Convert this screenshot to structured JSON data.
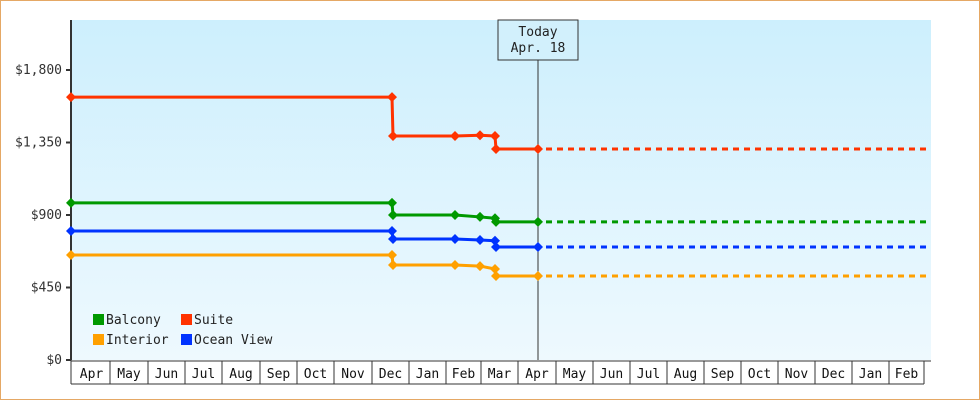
{
  "chart_data": {
    "type": "line",
    "title": "",
    "xlabel": "",
    "ylabel": "",
    "ylim": [
      0,
      2100
    ],
    "yticks": [
      {
        "value": 0,
        "label": "$0"
      },
      {
        "value": 450,
        "label": "$450"
      },
      {
        "value": 900,
        "label": "$900"
      },
      {
        "value": 1350,
        "label": "$1,350"
      },
      {
        "value": 1800,
        "label": "$1,800"
      }
    ],
    "months": [
      "Apr",
      "May",
      "Jun",
      "Jul",
      "Aug",
      "Sep",
      "Oct",
      "Nov",
      "Dec",
      "Jan",
      "Feb",
      "Mar",
      "Apr",
      "May",
      "Jun",
      "Jul",
      "Aug",
      "Sep",
      "Oct",
      "Nov",
      "Dec",
      "Jan",
      "Feb"
    ],
    "today_marker": {
      "line1": "Today",
      "line2": "Apr. 18"
    },
    "step_line": true,
    "projection": "dashed horizontal from today to end",
    "series": [
      {
        "name": "Suite",
        "color": "#ff3300",
        "points": [
          [
            "Apr (start)",
            1632
          ],
          [
            "Dec",
            1632
          ],
          [
            "Dec",
            1390
          ],
          [
            "Feb",
            1390
          ],
          [
            "Feb/Mar",
            1395
          ],
          [
            "Mar",
            1390
          ],
          [
            "Mar",
            1310
          ],
          [
            "Apr 18",
            1310
          ]
        ]
      },
      {
        "name": "Balcony",
        "color": "#009900",
        "points": [
          [
            "Apr (start)",
            975
          ],
          [
            "Dec",
            975
          ],
          [
            "Dec",
            900
          ],
          [
            "Feb",
            900
          ],
          [
            "Feb/Mar",
            888
          ],
          [
            "Mar",
            880
          ],
          [
            "Mar",
            857
          ],
          [
            "Apr 18",
            857
          ]
        ]
      },
      {
        "name": "Ocean View",
        "color": "#0033ff",
        "points": [
          [
            "Apr (start)",
            801
          ],
          [
            "Dec",
            801
          ],
          [
            "Dec",
            751
          ],
          [
            "Feb",
            751
          ],
          [
            "Feb/Mar",
            745
          ],
          [
            "Mar",
            740
          ],
          [
            "Mar",
            701
          ],
          [
            "Apr 18",
            701
          ]
        ]
      },
      {
        "name": "Interior",
        "color": "#ffa000",
        "points": [
          [
            "Apr (start)",
            652
          ],
          [
            "Dec",
            652
          ],
          [
            "Dec",
            590
          ],
          [
            "Feb",
            590
          ],
          [
            "Feb/Mar",
            583
          ],
          [
            "Mar",
            565
          ],
          [
            "Mar",
            521
          ],
          [
            "Apr 18",
            521
          ]
        ]
      }
    ],
    "legend": {
      "position": "lower-left inside",
      "entries": [
        "Balcony",
        "Suite",
        "Interior",
        "Ocean View"
      ]
    },
    "grid": false
  }
}
